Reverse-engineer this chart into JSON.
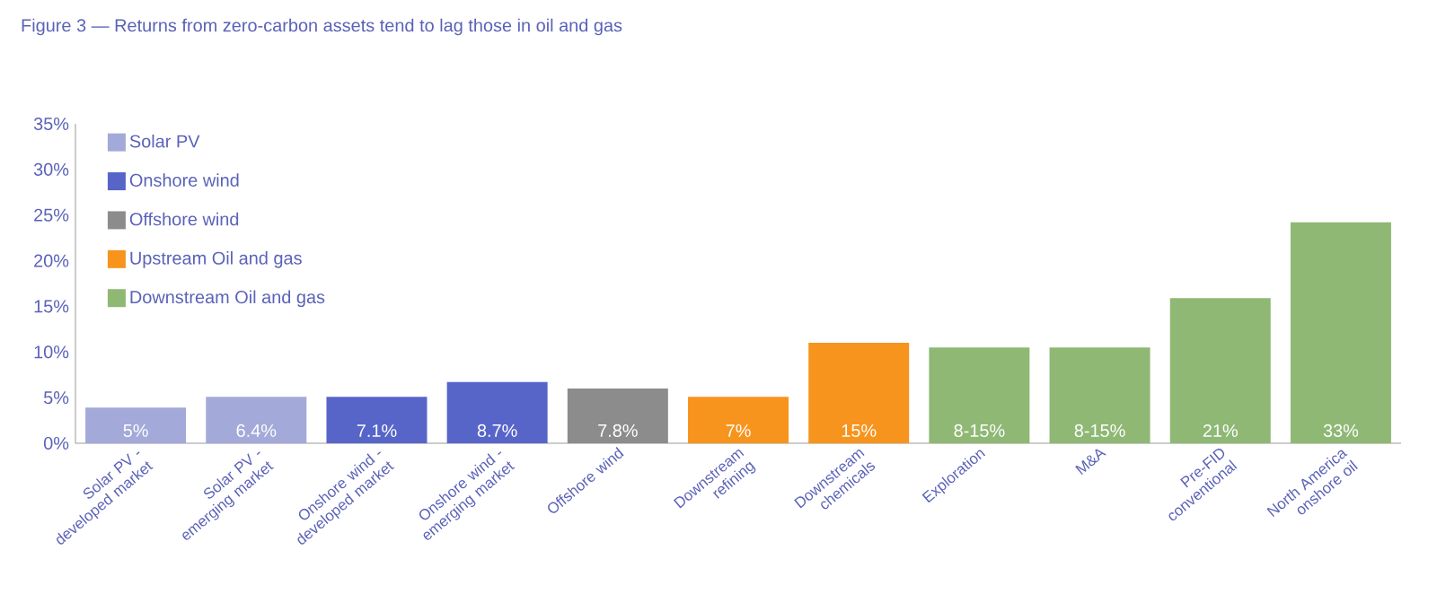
{
  "chart_data": {
    "type": "bar",
    "title": "Figure 3 — Returns from zero-carbon assets tend to lag those in oil and gas",
    "categories": [
      "Solar PV - developed market",
      "Solar PV - emerging market",
      "Onshore wind - developed market",
      "Onshore wind - emerging market",
      "Offshore wind",
      "Downstream refining",
      "Downstream chemicals",
      "Exploration",
      "M&A",
      "Pre-FID conventional",
      "North America onshore oil"
    ],
    "series": [
      {
        "name": "Solar PV",
        "color": "#a3a9d8",
        "values": [
          3.9,
          5.1,
          null,
          null,
          null,
          null,
          null,
          null,
          null,
          null,
          null
        ]
      },
      {
        "name": "Onshore wind",
        "color": "#5765c9",
        "values": [
          null,
          null,
          5.1,
          6.7,
          null,
          null,
          null,
          null,
          null,
          null,
          null
        ]
      },
      {
        "name": "Offshore wind",
        "color": "#8c8c8c",
        "values": [
          null,
          null,
          null,
          null,
          6.0,
          null,
          null,
          null,
          null,
          null,
          null
        ]
      },
      {
        "name": "Upstream Oil and gas",
        "color": "#f7941d",
        "values": [
          null,
          null,
          null,
          null,
          null,
          5.1,
          11.0,
          null,
          null,
          null,
          null
        ]
      },
      {
        "name": "Downstream Oil and gas",
        "color": "#8fb874",
        "values": [
          null,
          null,
          null,
          null,
          null,
          null,
          null,
          10.5,
          10.5,
          15.9,
          24.2
        ]
      }
    ],
    "annotations": [
      {
        "text": "5%",
        "x": "Solar PV - developed market",
        "y": 0
      },
      {
        "text": "6.4%",
        "x": "Solar PV - emerging market",
        "y": 0
      },
      {
        "text": "7.1%",
        "x": "Onshore wind - developed market",
        "y": 0
      },
      {
        "text": "8.7%",
        "x": "Onshore wind - emerging market",
        "y": 0
      },
      {
        "text": "7.8%",
        "x": "Offshore wind",
        "y": 0
      },
      {
        "text": "7%",
        "x": "Downstream refining",
        "y": 0
      },
      {
        "text": "15%",
        "x": "Downstream chemicals",
        "y": 0
      },
      {
        "text": "8-15%",
        "x": "Exploration",
        "y": 0
      },
      {
        "text": "8-15%",
        "x": "M&A",
        "y": 0
      },
      {
        "text": "21%",
        "x": "Pre-FID conventional",
        "y": 0
      },
      {
        "text": "33%",
        "x": "North America onshore oil",
        "y": 0
      }
    ],
    "ylim": [
      0,
      35
    ],
    "yticks": [
      {
        "value": 0,
        "label": "0%"
      },
      {
        "value": 5,
        "label": "5%"
      },
      {
        "value": 10,
        "label": "10%"
      },
      {
        "value": 15,
        "label": "15%"
      },
      {
        "value": 20,
        "label": "20%"
      },
      {
        "value": 25,
        "label": "25%"
      },
      {
        "value": 30,
        "label": "30%"
      },
      {
        "value": 35,
        "label": "35%"
      }
    ],
    "grid": false,
    "legend": "top left"
  }
}
